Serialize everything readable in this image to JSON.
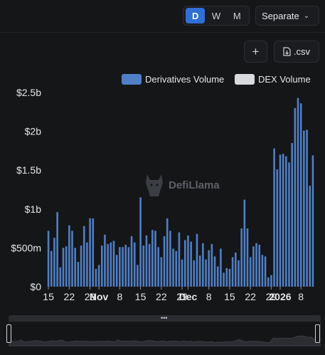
{
  "controls": {
    "periods": [
      "D",
      "W",
      "M"
    ],
    "active_period": "D",
    "mode": "Separate",
    "add_label": "+",
    "csv_label": ".csv"
  },
  "watermark": "DefiLlama",
  "colors": {
    "derivatives": "#4f7fc6",
    "dex": "#d9dadd",
    "background": "#151618",
    "active": "#2f6fd6"
  },
  "chart_data": {
    "type": "bar",
    "title": "",
    "xlabel": "",
    "ylabel": "",
    "ylim": [
      0,
      2500000000
    ],
    "y_ticks": [
      "$0",
      "$500m",
      "$1b",
      "$1.5b",
      "$2b",
      "$2.5b"
    ],
    "y_tick_values": [
      0,
      500000000,
      1000000000,
      1500000000,
      2000000000,
      2500000000
    ],
    "x_tick_labels": [
      {
        "label": "15",
        "bold": false,
        "index": 0
      },
      {
        "label": "22",
        "bold": false,
        "index": 7
      },
      {
        "label": "29",
        "bold": false,
        "index": 14
      },
      {
        "label": "Nov",
        "bold": true,
        "index": 17
      },
      {
        "label": "8",
        "bold": false,
        "index": 24
      },
      {
        "label": "15",
        "bold": false,
        "index": 31
      },
      {
        "label": "22",
        "bold": false,
        "index": 38
      },
      {
        "label": "29",
        "bold": false,
        "index": 45
      },
      {
        "label": "Dec",
        "bold": true,
        "index": 47
      },
      {
        "label": "8",
        "bold": false,
        "index": 54
      },
      {
        "label": "15",
        "bold": false,
        "index": 61
      },
      {
        "label": "22",
        "bold": false,
        "index": 68
      },
      {
        "label": "29",
        "bold": false,
        "index": 75
      },
      {
        "label": "2026",
        "bold": true,
        "index": 78
      },
      {
        "label": "8",
        "bold": false,
        "index": 85
      }
    ],
    "grid": false,
    "legend_position": "top-right",
    "series": [
      {
        "name": "Derivatives Volume",
        "values": [
          720000000,
          460000000,
          630000000,
          960000000,
          250000000,
          500000000,
          520000000,
          790000000,
          720000000,
          500000000,
          320000000,
          530000000,
          780000000,
          570000000,
          880000000,
          880000000,
          230000000,
          280000000,
          530000000,
          670000000,
          550000000,
          570000000,
          590000000,
          410000000,
          510000000,
          510000000,
          540000000,
          510000000,
          650000000,
          570000000,
          280000000,
          1150000000,
          530000000,
          660000000,
          550000000,
          730000000,
          720000000,
          510000000,
          380000000,
          650000000,
          880000000,
          720000000,
          490000000,
          460000000,
          700000000,
          350000000,
          600000000,
          660000000,
          580000000,
          340000000,
          680000000,
          400000000,
          560000000,
          350000000,
          470000000,
          550000000,
          390000000,
          260000000,
          490000000,
          180000000,
          240000000,
          230000000,
          380000000,
          440000000,
          340000000,
          750000000,
          1120000000,
          750000000,
          380000000,
          520000000,
          560000000,
          540000000,
          410000000,
          390000000,
          120000000,
          150000000,
          1780000000,
          1510000000,
          1700000000,
          1710000000,
          1680000000,
          1600000000,
          1850000000,
          2300000000,
          2430000000,
          2360000000,
          2010000000,
          2020000000,
          1300000000,
          1690000000
        ]
      },
      {
        "name": "DEX Volume",
        "values": []
      }
    ]
  }
}
